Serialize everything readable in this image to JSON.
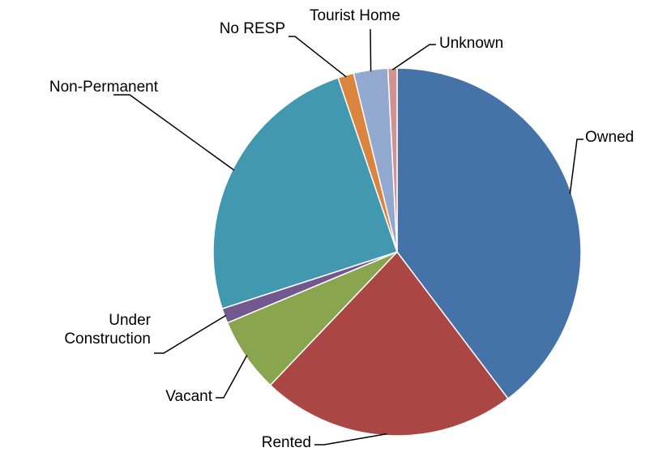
{
  "chart_data": {
    "type": "pie",
    "categories": [
      "Owned",
      "Rented",
      "Vacant",
      "Under Construction",
      "Non-Permanent",
      "No RESP",
      "Tourist Home",
      "Unknown"
    ],
    "values": [
      39.7,
      22.4,
      6.6,
      1.3,
      24.8,
      1.4,
      3.0,
      0.8
    ],
    "colors": [
      "#4572a7",
      "#aa4643",
      "#89a54e",
      "#71588f",
      "#4198af",
      "#db843d",
      "#93a9cf",
      "#d19392"
    ]
  }
}
